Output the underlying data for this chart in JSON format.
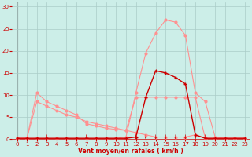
{
  "bg_color": "#cceee8",
  "grid_color": "#aaccc8",
  "line_light_color": "#ff9090",
  "line_dark_color": "#cc0000",
  "xlabel": "Vent moyen/en rafales ( km/h )",
  "ylabel_ticks": [
    0,
    5,
    10,
    15,
    20,
    25,
    30
  ],
  "xlim": [
    -0.5,
    23.5
  ],
  "ylim": [
    0,
    31
  ],
  "xticks": [
    0,
    1,
    2,
    3,
    4,
    5,
    6,
    7,
    8,
    9,
    10,
    11,
    12,
    13,
    14,
    15,
    16,
    17,
    18,
    19,
    20,
    21,
    22,
    23
  ],
  "curve_rafales_x": [
    0,
    1,
    2,
    3,
    4,
    5,
    6,
    7,
    8,
    9,
    10,
    11,
    12,
    13,
    14,
    15,
    16,
    17,
    18,
    19,
    20,
    21,
    22,
    23
  ],
  "curve_rafales_y": [
    0.2,
    0.2,
    0.2,
    0.2,
    0.2,
    0.2,
    0.2,
    0.2,
    0.2,
    0.2,
    0.2,
    0.5,
    10.5,
    19.5,
    24.0,
    27.0,
    26.5,
    23.5,
    10.5,
    8.5,
    0.5,
    0.2,
    0.2,
    0.2
  ],
  "curve_moy_x": [
    0,
    1,
    2,
    3,
    4,
    5,
    6,
    7,
    8,
    9,
    10,
    11,
    12,
    13,
    14,
    15,
    16,
    17,
    18,
    19,
    20,
    21,
    22,
    23
  ],
  "curve_moy_y": [
    0.2,
    0.2,
    0.2,
    0.2,
    0.2,
    0.2,
    0.2,
    0.2,
    0.2,
    0.2,
    0.2,
    0.2,
    0.5,
    9.5,
    15.5,
    15.0,
    14.0,
    12.5,
    1.0,
    0.2,
    0.2,
    0.2,
    0.2,
    0.2
  ],
  "curve_a_x": [
    0,
    1,
    2,
    3,
    4,
    5,
    6,
    7,
    8,
    9,
    10,
    11,
    12,
    13,
    14,
    15,
    16,
    17,
    18,
    19,
    20,
    21,
    22,
    23
  ],
  "curve_a_y": [
    0.2,
    0.2,
    10.5,
    8.5,
    7.5,
    6.5,
    5.5,
    3.5,
    3.0,
    2.5,
    2.2,
    2.0,
    9.5,
    9.5,
    9.5,
    9.5,
    9.5,
    9.5,
    9.5,
    0.2,
    0.2,
    0.2,
    0.2,
    0.2
  ],
  "curve_b_x": [
    0,
    1,
    2,
    3,
    4,
    5,
    6,
    7,
    8,
    9,
    10,
    11,
    12,
    13,
    14,
    15,
    16,
    17,
    18,
    19,
    20,
    21,
    22,
    23
  ],
  "curve_b_y": [
    0.2,
    0.2,
    8.5,
    7.5,
    6.5,
    5.5,
    5.0,
    4.0,
    3.5,
    3.0,
    2.5,
    2.0,
    1.5,
    1.0,
    0.5,
    0.5,
    0.5,
    0.5,
    1.0,
    0.2,
    0.2,
    0.2,
    0.2,
    0.2
  ],
  "curve_c_x": [
    0,
    1,
    2,
    3,
    4,
    5,
    6,
    7,
    8,
    9,
    10,
    11,
    12,
    13,
    14,
    15,
    16,
    17,
    18,
    19,
    20,
    21,
    22,
    23
  ],
  "curve_c_y": [
    0.2,
    0.2,
    0.2,
    0.2,
    0.2,
    0.2,
    0.2,
    0.2,
    0.2,
    0.2,
    0.2,
    0.2,
    0.2,
    0.2,
    0.2,
    0.2,
    0.2,
    0.2,
    0.2,
    0.2,
    0.2,
    0.2,
    0.2,
    0.2
  ],
  "tick_down_x": [
    3,
    7,
    12,
    13,
    14,
    15,
    16,
    17,
    18,
    19
  ],
  "spine_color": "#888888"
}
